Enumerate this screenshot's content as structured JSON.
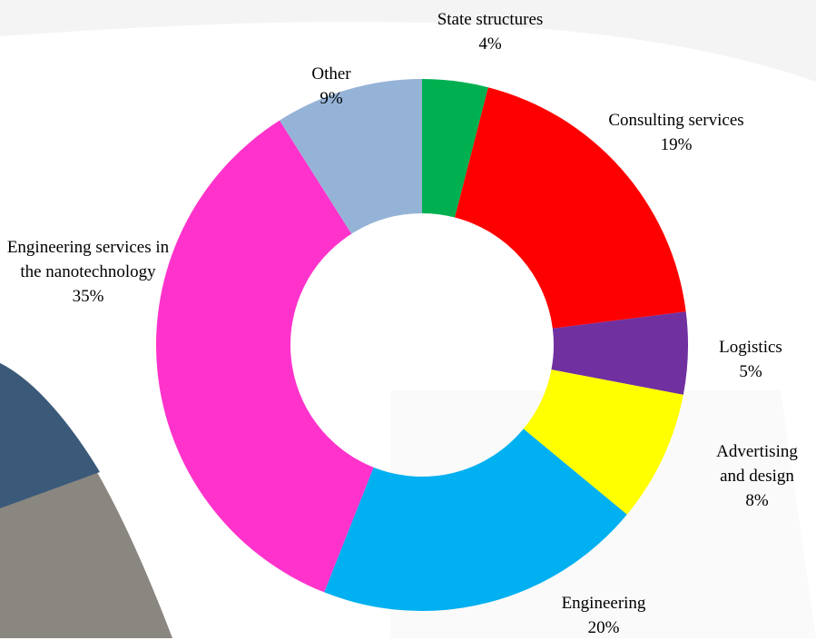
{
  "chart_data": {
    "type": "pie",
    "categories": [
      "State structures",
      "Consulting services",
      "Logistics",
      "Advertising and design",
      "Engineering",
      "Engineering services in the nanotechnology",
      "Other"
    ],
    "values": [
      4,
      19,
      5,
      8,
      20,
      35,
      9
    ],
    "value_labels": [
      "4%",
      "19%",
      "5%",
      "8%",
      "20%",
      "35%",
      "9%"
    ],
    "colors": [
      "#00b050",
      "#ff0000",
      "#7030a0",
      "#ffff00",
      "#00b0f0",
      "#ff33cc",
      "#95b3d7"
    ]
  }
}
